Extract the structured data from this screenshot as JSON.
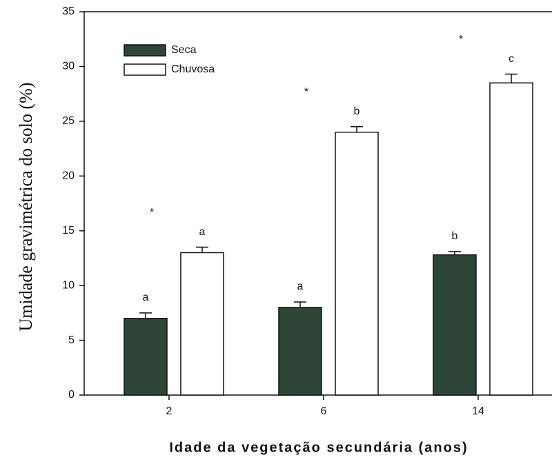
{
  "chart_data": {
    "type": "bar",
    "x_label": "Idade da vegetação secundária (anos)",
    "y_label": "Umidade gravimétrica do solo (%)",
    "categories": [
      "2",
      "6",
      "14"
    ],
    "series": [
      {
        "name": "Seca",
        "color": "#2e4638",
        "values": [
          7,
          8,
          12.8
        ],
        "errors": [
          0.5,
          0.5,
          0.3
        ],
        "labels": [
          "a",
          "a",
          "b"
        ]
      },
      {
        "name": "Chuvosa",
        "color": "#ffffff",
        "values": [
          13,
          24,
          28.5
        ],
        "errors": [
          0.5,
          0.5,
          0.8
        ],
        "labels": [
          "a",
          "b",
          "c"
        ]
      }
    ],
    "annotations": [
      "*",
      "*",
      "*"
    ],
    "ylim": [
      0,
      35
    ],
    "yticks": [
      0,
      5,
      10,
      15,
      20,
      25,
      30,
      35
    ],
    "legend": "upper left"
  }
}
